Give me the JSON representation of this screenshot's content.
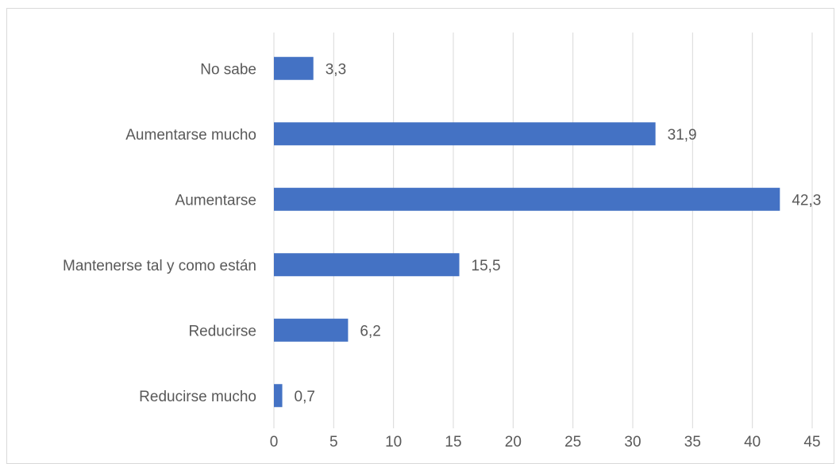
{
  "chart_data": {
    "type": "bar",
    "orientation": "horizontal",
    "title": "",
    "xlabel": "",
    "ylabel": "",
    "categories": [
      "No sabe",
      "Aumentarse mucho",
      "Aumentarse",
      "Mantenerse tal y como están",
      "Reducirse",
      "Reducirse mucho"
    ],
    "values": [
      3.3,
      31.9,
      42.3,
      15.5,
      6.2,
      0.7
    ],
    "data_labels": [
      "3,3",
      "31,9",
      "42,3",
      "15,5",
      "6,2",
      "0,7"
    ],
    "xlim": [
      0,
      45
    ],
    "x_ticks": [
      0,
      5,
      10,
      15,
      20,
      25,
      30,
      35,
      40,
      45
    ],
    "x_tick_labels": [
      "0",
      "5",
      "10",
      "15",
      "20",
      "25",
      "30",
      "35",
      "40",
      "45"
    ],
    "grid": "vertical",
    "legend": "none",
    "bar_color": "#4472C4",
    "grid_color": "#d9d9d9",
    "text_color": "#595959"
  }
}
